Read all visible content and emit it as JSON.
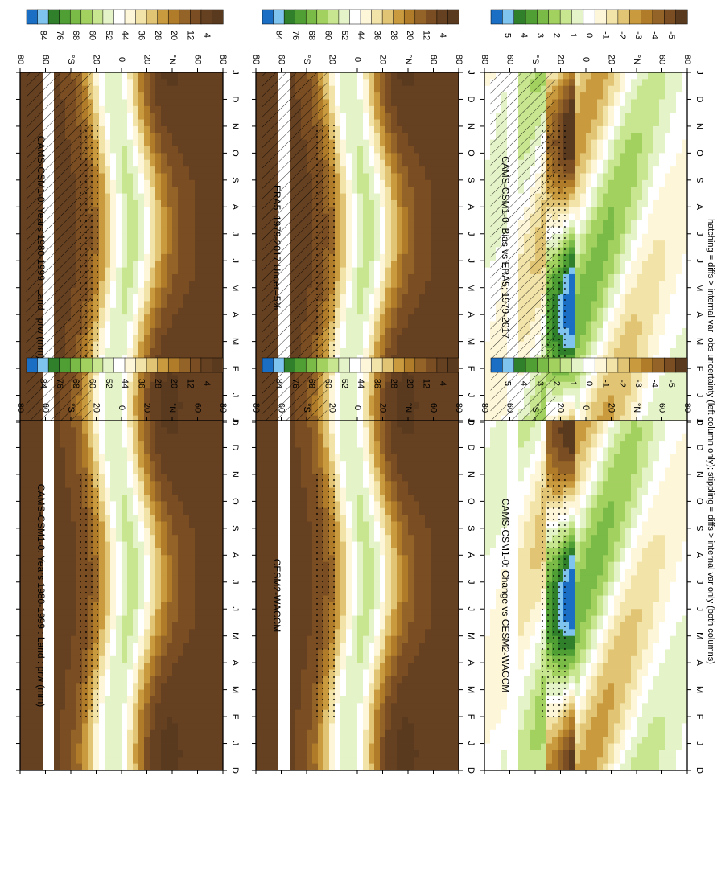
{
  "caption": "hatching = diffs > internal var+obs uncertainty (left column only); stippling = diffs > internal var only (both columns)",
  "colors": {
    "prw_scale": [
      "#1a6fc4",
      "#7fc4ee",
      "#2f7f2b",
      "#4f9f35",
      "#79bb46",
      "#a3d160",
      "#c8e68f",
      "#e5f3c8",
      "#ffffff",
      "#fdf6d8",
      "#f2e3a9",
      "#e2c574",
      "#c99a3e",
      "#b07c2a",
      "#936327",
      "#7a4d22",
      "#654021",
      "#5a3a1f"
    ],
    "diff_scale": [
      "#1a6fc4",
      "#7fc4ee",
      "#2f7f2b",
      "#4f9f35",
      "#79bb46",
      "#a3d160",
      "#c8e68f",
      "#e5f3c8",
      "#ffffff",
      "#fdf6d8",
      "#f2e3a9",
      "#e2c574",
      "#c99a3e",
      "#b07c2a",
      "#936327",
      "#7a4d22",
      "#5a3a1f"
    ],
    "missing_band": "#ffffff"
  },
  "chart_data": [
    {
      "type": "heatmap",
      "panel": "a",
      "title": "CAMS-CSM1-0: Years 1980-1999 : Land : prw (mm)",
      "x_ticks": [
        "D",
        "J",
        "F",
        "M",
        "A",
        "M",
        "J",
        "J",
        "A",
        "S",
        "O",
        "N",
        "D",
        "J"
      ],
      "y_ticks": [
        "80",
        "60",
        "°N",
        "20",
        "0",
        "20",
        "°S",
        "60",
        "80"
      ],
      "colorbar_labels": [
        "84",
        "76",
        "68",
        "60",
        "52",
        "44",
        "36",
        "28",
        "20",
        "12",
        "4"
      ],
      "field": "prw",
      "hatching": true,
      "stippling": true
    },
    {
      "type": "heatmap",
      "panel": "b",
      "title": "CAMS-CSM1-0: Years 1980-1999 : Land : prw (mm)",
      "x_ticks": [
        "D",
        "J",
        "F",
        "M",
        "A",
        "M",
        "J",
        "J",
        "A",
        "S",
        "O",
        "N",
        "D",
        "J"
      ],
      "y_ticks": [
        "80",
        "60",
        "°N",
        "20",
        "0",
        "20",
        "°S",
        "60",
        "80"
      ],
      "colorbar_labels": [
        "84",
        "76",
        "68",
        "60",
        "52",
        "44",
        "36",
        "28",
        "20",
        "12",
        "4"
      ],
      "field": "prw",
      "hatching": false,
      "stippling": true
    },
    {
      "type": "heatmap",
      "panel": "c",
      "title": "ERA5: 1979-2017 Uncer=5%",
      "x_ticks": [
        "D",
        "J",
        "F",
        "M",
        "A",
        "M",
        "J",
        "J",
        "A",
        "S",
        "O",
        "N",
        "D",
        "J"
      ],
      "y_ticks": [
        "80",
        "60",
        "°N",
        "20",
        "0",
        "20",
        "°S",
        "60",
        "80"
      ],
      "colorbar_labels": [
        "84",
        "76",
        "68",
        "60",
        "52",
        "44",
        "36",
        "28",
        "20",
        "12",
        "4"
      ],
      "field": "prw",
      "hatching": true,
      "stippling": true
    },
    {
      "type": "heatmap",
      "panel": "d",
      "title": "CESM2-WACCM",
      "x_ticks": [
        "D",
        "J",
        "F",
        "M",
        "A",
        "M",
        "J",
        "J",
        "A",
        "S",
        "O",
        "N",
        "D",
        "J"
      ],
      "y_ticks": [
        "80",
        "60",
        "°N",
        "20",
        "0",
        "20",
        "°S",
        "60",
        "80"
      ],
      "colorbar_labels": [
        "84",
        "76",
        "68",
        "60",
        "52",
        "44",
        "36",
        "28",
        "20",
        "12",
        "4"
      ],
      "field": "prw",
      "hatching": false,
      "stippling": true
    },
    {
      "type": "heatmap",
      "panel": "e",
      "title": "CAMS-CSM1-0: Bias vs ERA5; 1979-2017",
      "x_ticks": [
        "D",
        "J",
        "F",
        "M",
        "A",
        "M",
        "J",
        "J",
        "A",
        "S",
        "O",
        "N",
        "D",
        "J"
      ],
      "y_ticks": [
        "80",
        "60",
        "°N",
        "20",
        "0",
        "20",
        "°S",
        "60",
        "80"
      ],
      "colorbar_labels": [
        "5",
        "4",
        "3",
        "2",
        "1",
        "0",
        "-1",
        "-2",
        "-3",
        "-4",
        "-5"
      ],
      "field": "diff",
      "hatching": true,
      "stippling": true
    },
    {
      "type": "heatmap",
      "panel": "f",
      "title": "CAMS-CSM1-0: Change vs CESM2-WACCM",
      "x_ticks": [
        "D",
        "J",
        "F",
        "M",
        "A",
        "M",
        "J",
        "J",
        "A",
        "S",
        "O",
        "N",
        "D",
        "J"
      ],
      "y_ticks": [
        "80",
        "60",
        "°N",
        "20",
        "0",
        "20",
        "°S",
        "60",
        "80"
      ],
      "colorbar_labels": [
        "5",
        "4",
        "3",
        "2",
        "1",
        "0",
        "-1",
        "-2",
        "-3",
        "-4",
        "-5"
      ],
      "field": "diff",
      "hatching": false,
      "stippling": true
    }
  ]
}
